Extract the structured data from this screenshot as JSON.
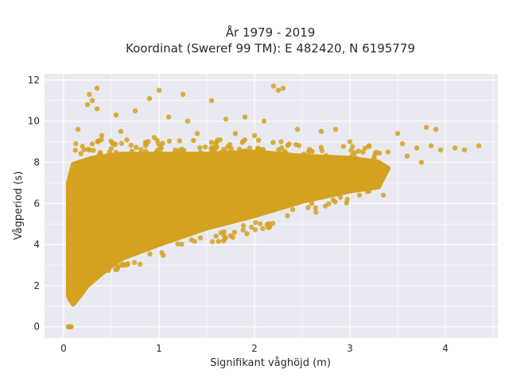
{
  "chart_data": {
    "type": "scatter",
    "title_line1": "År 1979 - 2019",
    "title_line2": "Koordinat (Sweref 99 TM): E 482420, N 6195779",
    "xlabel": "Signifikant våghöjd (m)",
    "ylabel": "Vågperiod (s)",
    "xlim": [
      -0.2,
      4.55
    ],
    "ylim": [
      -0.55,
      12.3
    ],
    "xticks": [
      0,
      1,
      2,
      3,
      4
    ],
    "yticks": [
      0,
      2,
      4,
      6,
      8,
      10,
      12
    ],
    "grid": true,
    "marker_color": "#d4a21f",
    "background_color": "#e9e9f1",
    "series": [
      {
        "values_description_points": [
          [
            0.05,
            0.0
          ],
          [
            0.08,
            0.0
          ],
          [
            0.06,
            0.0
          ],
          [
            0.05,
            1.5
          ],
          [
            0.07,
            1.3
          ],
          [
            0.1,
            1.2
          ],
          [
            0.12,
            1.4
          ],
          [
            0.1,
            1.8
          ],
          [
            0.08,
            2.5
          ],
          [
            0.06,
            3.0
          ],
          [
            0.35,
            11.6
          ],
          [
            0.27,
            11.3
          ],
          [
            0.3,
            11.0
          ],
          [
            0.25,
            10.8
          ],
          [
            0.35,
            10.6
          ],
          [
            1.0,
            11.5
          ],
          [
            1.25,
            11.3
          ],
          [
            0.9,
            11.1
          ],
          [
            1.55,
            11.0
          ],
          [
            2.2,
            11.7
          ],
          [
            2.3,
            11.6
          ],
          [
            2.25,
            11.5
          ],
          [
            0.55,
            10.3
          ],
          [
            0.75,
            10.5
          ],
          [
            1.1,
            10.2
          ],
          [
            1.3,
            10.0
          ],
          [
            1.7,
            10.1
          ],
          [
            1.9,
            10.2
          ],
          [
            2.1,
            10.0
          ],
          [
            0.15,
            9.6
          ],
          [
            0.4,
            9.3
          ],
          [
            0.6,
            9.5
          ],
          [
            0.95,
            9.2
          ],
          [
            1.4,
            9.4
          ],
          [
            1.8,
            9.4
          ],
          [
            2.0,
            9.3
          ],
          [
            2.45,
            9.6
          ],
          [
            2.7,
            9.5
          ],
          [
            2.85,
            9.6
          ],
          [
            3.0,
            9.0
          ],
          [
            3.2,
            8.8
          ],
          [
            3.5,
            9.4
          ],
          [
            3.55,
            8.9
          ],
          [
            3.7,
            8.7
          ],
          [
            3.85,
            8.8
          ],
          [
            3.95,
            8.6
          ],
          [
            4.1,
            8.7
          ],
          [
            4.2,
            8.6
          ],
          [
            4.35,
            8.8
          ],
          [
            3.9,
            9.6
          ],
          [
            3.8,
            9.7
          ],
          [
            3.4,
            8.5
          ],
          [
            3.6,
            8.3
          ],
          [
            3.75,
            8.0
          ],
          [
            3.2,
            6.6
          ],
          [
            3.35,
            6.4
          ],
          [
            3.1,
            6.4
          ],
          [
            2.9,
            6.3
          ],
          [
            2.6,
            6.0
          ],
          [
            2.4,
            5.7
          ]
        ]
      }
    ]
  }
}
